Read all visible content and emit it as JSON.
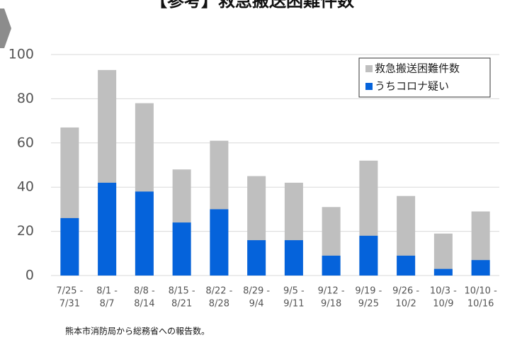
{
  "chart_data": {
    "type": "bar",
    "title": "【参考】救急搬送困難件数",
    "categories": [
      [
        "7/25 -",
        "7/31"
      ],
      [
        "8/1 -",
        "8/7"
      ],
      [
        "8/8 -",
        "8/14"
      ],
      [
        "8/15 -",
        "8/21"
      ],
      [
        "8/22 -",
        "8/28"
      ],
      [
        "8/29 -",
        "9/4"
      ],
      [
        "9/5 -",
        "9/11"
      ],
      [
        "9/12 -",
        "9/18"
      ],
      [
        "9/19 -",
        "9/25"
      ],
      [
        "9/26 -",
        "10/2"
      ],
      [
        "10/3 -",
        "10/9"
      ],
      [
        "10/10 -",
        "10/16"
      ]
    ],
    "series": [
      {
        "name": "救急搬送困難件数",
        "color": "#bfbfbf",
        "values": [
          67,
          93,
          78,
          48,
          61,
          45,
          42,
          31,
          52,
          36,
          19,
          29
        ]
      },
      {
        "name": "うちコロナ疑い",
        "color": "#0563db",
        "values": [
          26,
          42,
          38,
          24,
          30,
          16,
          16,
          9,
          18,
          9,
          3,
          7
        ]
      }
    ],
    "ylim": [
      0,
      100
    ],
    "yticks": [
      0,
      20,
      40,
      60,
      80,
      100
    ],
    "grid": true,
    "legend": "upper right",
    "note": "熊本市消防局から総務省への報告数。"
  }
}
